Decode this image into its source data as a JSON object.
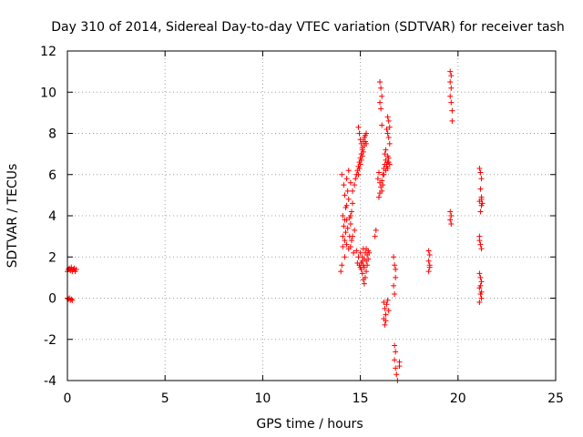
{
  "chart_data": {
    "type": "scatter",
    "title": "Day 310 of 2014, Sidereal Day-to-day VTEC variation (SDTVAR) for receiver tash",
    "xlabel": "GPS time / hours",
    "ylabel": "SDTVAR / TECUs",
    "xlim": [
      0,
      25
    ],
    "ylim": [
      -4,
      12
    ],
    "xticks": [
      0,
      5,
      10,
      15,
      20,
      25
    ],
    "yticks": [
      -4,
      -2,
      0,
      2,
      4,
      6,
      8,
      10,
      12
    ],
    "grid": true,
    "marker": "+",
    "color": "#ff0000",
    "series": [
      {
        "name": "SDTVAR",
        "points": [
          [
            0.0,
            1.3
          ],
          [
            0.05,
            1.4
          ],
          [
            0.1,
            1.45
          ],
          [
            0.15,
            1.35
          ],
          [
            0.2,
            1.5
          ],
          [
            0.25,
            1.3
          ],
          [
            0.3,
            1.4
          ],
          [
            0.35,
            1.45
          ],
          [
            0.4,
            1.3
          ],
          [
            0.45,
            1.4
          ],
          [
            0.0,
            0.0
          ],
          [
            0.05,
            -0.05
          ],
          [
            0.1,
            0.0
          ],
          [
            0.15,
            -0.1
          ],
          [
            0.2,
            -0.05
          ],
          [
            0.25,
            -0.1
          ],
          [
            14.0,
            1.3
          ],
          [
            14.05,
            1.6
          ],
          [
            14.1,
            2.5
          ],
          [
            14.1,
            3.0
          ],
          [
            14.15,
            3.5
          ],
          [
            14.1,
            4.0
          ],
          [
            14.2,
            5.0
          ],
          [
            14.15,
            5.5
          ],
          [
            14.05,
            6.0
          ],
          [
            14.2,
            2.0
          ],
          [
            14.2,
            2.8
          ],
          [
            14.25,
            3.2
          ],
          [
            14.3,
            3.8
          ],
          [
            14.3,
            4.5
          ],
          [
            14.35,
            5.2
          ],
          [
            14.4,
            4.8
          ],
          [
            14.45,
            3.0
          ],
          [
            14.5,
            2.5
          ],
          [
            14.5,
            3.6
          ],
          [
            14.55,
            4.2
          ],
          [
            14.6,
            4.6
          ],
          [
            14.6,
            5.2
          ],
          [
            14.5,
            5.6
          ],
          [
            14.4,
            6.2
          ],
          [
            14.6,
            3.0
          ],
          [
            14.65,
            2.2
          ],
          [
            14.7,
            3.3
          ],
          [
            14.3,
            2.6
          ],
          [
            14.35,
            3.4
          ],
          [
            14.25,
            4.4
          ],
          [
            14.45,
            3.9
          ],
          [
            14.55,
            2.8
          ],
          [
            14.4,
            2.4
          ],
          [
            14.2,
            3.8
          ],
          [
            14.3,
            5.8
          ],
          [
            14.5,
            4.0
          ],
          [
            14.7,
            5.5
          ],
          [
            14.75,
            5.8
          ],
          [
            14.8,
            6.0
          ],
          [
            14.85,
            6.2
          ],
          [
            14.9,
            6.4
          ],
          [
            14.95,
            6.6
          ],
          [
            15.0,
            6.8
          ],
          [
            15.05,
            7.0
          ],
          [
            15.1,
            7.2
          ],
          [
            14.9,
            6.0
          ],
          [
            14.95,
            6.3
          ],
          [
            15.0,
            6.5
          ],
          [
            15.05,
            6.7
          ],
          [
            15.1,
            6.9
          ],
          [
            15.15,
            7.1
          ],
          [
            15.2,
            7.4
          ],
          [
            15.25,
            7.6
          ],
          [
            15.3,
            8.0
          ],
          [
            14.9,
            8.3
          ],
          [
            14.95,
            8.0
          ],
          [
            15.0,
            7.7
          ],
          [
            15.05,
            7.5
          ],
          [
            15.1,
            7.3
          ],
          [
            15.15,
            7.6
          ],
          [
            15.2,
            7.8
          ],
          [
            15.25,
            7.9
          ],
          [
            15.3,
            7.5
          ],
          [
            15.0,
            1.5
          ],
          [
            15.05,
            1.7
          ],
          [
            15.1,
            2.0
          ],
          [
            15.15,
            1.6
          ],
          [
            15.2,
            1.9
          ],
          [
            15.25,
            2.2
          ],
          [
            15.3,
            1.8
          ],
          [
            15.35,
            2.1
          ],
          [
            15.4,
            2.3
          ],
          [
            14.9,
            2.0
          ],
          [
            14.95,
            1.6
          ],
          [
            15.0,
            2.2
          ],
          [
            15.05,
            1.4
          ],
          [
            15.1,
            1.2
          ],
          [
            15.15,
            0.9
          ],
          [
            15.2,
            0.7
          ],
          [
            15.25,
            1.0
          ],
          [
            15.3,
            1.3
          ],
          [
            15.1,
            1.8
          ],
          [
            15.2,
            1.5
          ],
          [
            15.3,
            2.4
          ],
          [
            15.35,
            1.6
          ],
          [
            15.4,
            1.9
          ],
          [
            15.45,
            2.2
          ],
          [
            14.85,
            1.7
          ],
          [
            14.8,
            2.3
          ],
          [
            15.15,
            2.4
          ],
          [
            15.75,
            3.0
          ],
          [
            15.8,
            3.3
          ],
          [
            15.9,
            5.8
          ],
          [
            15.95,
            6.1
          ],
          [
            16.0,
            5.6
          ],
          [
            16.05,
            5.4
          ],
          [
            16.1,
            5.2
          ],
          [
            16.15,
            5.5
          ],
          [
            15.95,
            4.9
          ],
          [
            16.0,
            5.1
          ],
          [
            16.1,
            5.7
          ],
          [
            16.15,
            6.0
          ],
          [
            16.2,
            6.3
          ],
          [
            16.25,
            6.5
          ],
          [
            16.3,
            6.7
          ],
          [
            16.35,
            6.4
          ],
          [
            16.4,
            6.6
          ],
          [
            16.45,
            6.8
          ],
          [
            16.3,
            6.2
          ],
          [
            16.2,
            6.0
          ],
          [
            16.25,
            7.0
          ],
          [
            16.3,
            7.2
          ],
          [
            16.4,
            6.9
          ],
          [
            16.35,
            6.5
          ],
          [
            16.4,
            6.3
          ],
          [
            16.45,
            6.6
          ],
          [
            16.5,
            6.5
          ],
          [
            16.0,
            10.5
          ],
          [
            16.05,
            10.2
          ],
          [
            16.1,
            9.8
          ],
          [
            16.0,
            9.5
          ],
          [
            16.05,
            9.2
          ],
          [
            16.1,
            8.4
          ],
          [
            16.4,
            8.8
          ],
          [
            16.45,
            8.6
          ],
          [
            16.5,
            8.3
          ],
          [
            16.4,
            8.0
          ],
          [
            16.45,
            7.8
          ],
          [
            16.5,
            7.5
          ],
          [
            16.35,
            8.2
          ],
          [
            16.2,
            -0.2
          ],
          [
            16.25,
            -0.5
          ],
          [
            16.3,
            -0.8
          ],
          [
            16.2,
            -1.0
          ],
          [
            16.25,
            -1.3
          ],
          [
            16.3,
            -1.1
          ],
          [
            16.35,
            -0.3
          ],
          [
            16.4,
            -0.1
          ],
          [
            16.45,
            -0.6
          ],
          [
            16.7,
            2.0
          ],
          [
            16.75,
            1.6
          ],
          [
            16.8,
            1.0
          ],
          [
            16.7,
            0.6
          ],
          [
            16.75,
            0.2
          ],
          [
            16.8,
            1.4
          ],
          [
            16.75,
            -2.3
          ],
          [
            16.8,
            -2.6
          ],
          [
            16.75,
            -3.0
          ],
          [
            16.8,
            -3.4
          ],
          [
            16.85,
            -3.7
          ],
          [
            16.9,
            -4.0
          ],
          [
            17.0,
            -3.1
          ],
          [
            17.0,
            -3.3
          ],
          [
            18.5,
            1.3
          ],
          [
            18.55,
            1.5
          ],
          [
            18.5,
            1.8
          ],
          [
            18.55,
            2.1
          ],
          [
            18.5,
            2.3
          ],
          [
            18.55,
            1.6
          ],
          [
            19.6,
            11.0
          ],
          [
            19.65,
            10.8
          ],
          [
            19.6,
            10.5
          ],
          [
            19.65,
            10.2
          ],
          [
            19.6,
            9.8
          ],
          [
            19.65,
            9.5
          ],
          [
            19.7,
            9.1
          ],
          [
            19.7,
            8.6
          ],
          [
            19.6,
            4.2
          ],
          [
            19.65,
            4.0
          ],
          [
            19.6,
            3.8
          ],
          [
            19.65,
            3.6
          ],
          [
            21.1,
            6.3
          ],
          [
            21.15,
            6.1
          ],
          [
            21.2,
            5.8
          ],
          [
            21.15,
            5.3
          ],
          [
            21.2,
            4.9
          ],
          [
            21.1,
            4.7
          ],
          [
            21.2,
            4.5
          ],
          [
            21.15,
            4.2
          ],
          [
            21.2,
            4.8
          ],
          [
            21.25,
            4.6
          ],
          [
            21.1,
            3.0
          ],
          [
            21.15,
            2.6
          ],
          [
            21.2,
            2.4
          ],
          [
            21.1,
            2.8
          ],
          [
            21.1,
            1.2
          ],
          [
            21.15,
            1.0
          ],
          [
            21.2,
            0.8
          ],
          [
            21.1,
            0.5
          ],
          [
            21.15,
            0.2
          ],
          [
            21.2,
            0.0
          ],
          [
            21.1,
            -0.2
          ],
          [
            21.15,
            0.6
          ],
          [
            21.2,
            0.3
          ]
        ]
      }
    ]
  }
}
